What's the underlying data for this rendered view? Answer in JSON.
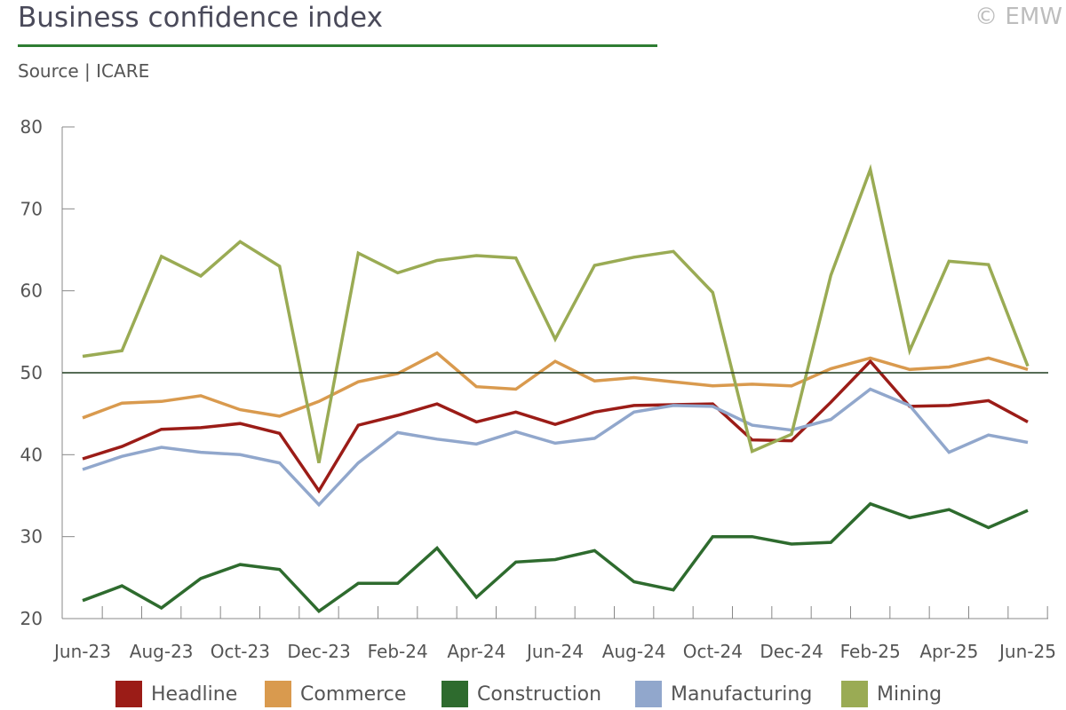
{
  "header": {
    "title": "Business confidence index",
    "source": "Source | ICARE",
    "copyright": "© EMW"
  },
  "colors": {
    "title_rule": "#2e7d32",
    "axis": "#1f3b1f",
    "tick": "#888888"
  },
  "chart_data": {
    "type": "line",
    "title": "Business confidence index",
    "xlabel": "",
    "ylabel": "",
    "ylim": [
      20,
      80
    ],
    "yticks": [
      20,
      30,
      40,
      50,
      60,
      70,
      80
    ],
    "reference_line": 50,
    "grid": false,
    "legend_position": "bottom",
    "x": [
      "Jun-23",
      "Jul-23",
      "Aug-23",
      "Sep-23",
      "Oct-23",
      "Nov-23",
      "Dec-23",
      "Jan-24",
      "Feb-24",
      "Mar-24",
      "Apr-24",
      "May-24",
      "Jun-24",
      "Jul-24",
      "Aug-24",
      "Sep-24",
      "Oct-24",
      "Nov-24",
      "Dec-24",
      "Jan-25",
      "Feb-25",
      "Mar-25",
      "Apr-25",
      "May-25",
      "Jun-25"
    ],
    "xtick_labels": [
      "Jun-23",
      "Aug-23",
      "Oct-23",
      "Dec-23",
      "Feb-24",
      "Apr-24",
      "Jun-24",
      "Aug-24",
      "Oct-24",
      "Dec-24",
      "Feb-25",
      "Apr-25",
      "Jun-25"
    ],
    "series": [
      {
        "name": "Headline",
        "color": "#9b1c17",
        "values": [
          39.5,
          41.0,
          43.1,
          43.3,
          43.8,
          42.6,
          35.6,
          43.6,
          44.8,
          46.2,
          44.0,
          45.2,
          43.7,
          45.2,
          46.0,
          46.1,
          46.2,
          41.8,
          41.7,
          46.4,
          51.4,
          45.9,
          46.0,
          46.6,
          44.0
        ]
      },
      {
        "name": "Commerce",
        "color": "#d99a4e",
        "values": [
          44.5,
          46.3,
          46.5,
          47.2,
          45.5,
          44.7,
          46.5,
          48.9,
          49.9,
          52.4,
          48.3,
          48.0,
          51.4,
          49.0,
          49.4,
          48.9,
          48.4,
          48.6,
          48.4,
          50.5,
          51.8,
          50.4,
          50.7,
          51.8,
          50.4
        ]
      },
      {
        "name": "Construction",
        "color": "#2e6b2e",
        "values": [
          22.2,
          24.0,
          21.3,
          24.9,
          26.6,
          26.0,
          20.9,
          24.3,
          24.3,
          28.6,
          22.6,
          26.9,
          27.2,
          28.3,
          24.5,
          23.5,
          30.0,
          30.0,
          29.1,
          29.3,
          34.0,
          32.3,
          33.3,
          31.1,
          33.2
        ]
      },
      {
        "name": "Manufacturing",
        "color": "#91a7cc",
        "values": [
          38.2,
          39.8,
          40.9,
          40.3,
          40.0,
          39.0,
          33.9,
          39.0,
          42.7,
          41.9,
          41.3,
          42.8,
          41.4,
          42.0,
          45.2,
          46.0,
          45.9,
          43.6,
          43.0,
          44.3,
          48.0,
          46.0,
          40.3,
          42.4,
          41.5
        ]
      },
      {
        "name": "Mining",
        "color": "#9aab54",
        "values": [
          52.0,
          52.7,
          64.2,
          61.8,
          66.0,
          63.0,
          39.0,
          64.6,
          62.2,
          63.7,
          64.3,
          64.0,
          54.1,
          63.1,
          64.1,
          64.8,
          59.8,
          40.4,
          42.5,
          61.9,
          74.8,
          52.7,
          63.6,
          63.2,
          50.8
        ]
      }
    ]
  }
}
